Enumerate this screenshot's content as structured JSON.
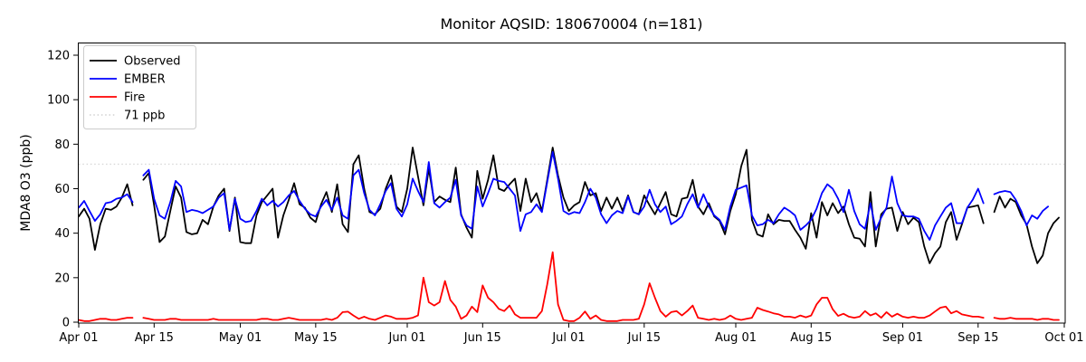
{
  "title": "Monitor AQSID: 180670004 (n=181)",
  "axes": {
    "ylabel": "MDA8 O3 (ppb)",
    "y_ticks": [
      0,
      20,
      40,
      60,
      80,
      100,
      120
    ],
    "x_tick_labels": [
      "Apr 01",
      "Apr 15",
      "May 01",
      "May 15",
      "Jun 01",
      "Jun 15",
      "Jul 01",
      "Jul 15",
      "Aug 01",
      "Aug 15",
      "Sep 01",
      "Sep 15",
      "Oct 01"
    ],
    "x_tick_days": [
      0,
      14,
      30,
      44,
      61,
      75,
      91,
      105,
      122,
      136,
      153,
      167,
      183
    ],
    "ylim": [
      0,
      125.7
    ],
    "total_days": 183,
    "grid": false
  },
  "threshold": {
    "value": 71,
    "label": "71 ppb",
    "color": "#d8d8d8"
  },
  "legend": {
    "position": "upper-left",
    "items": [
      {
        "label": "Observed",
        "color": "#000000",
        "style": "solid"
      },
      {
        "label": "EMBER",
        "color": "#0000ff",
        "style": "solid"
      },
      {
        "label": "Fire",
        "color": "#ff0000",
        "style": "solid"
      },
      {
        "label": "71 ppb",
        "color": "#d8d8d8",
        "style": "dotted"
      }
    ]
  },
  "chart_data": {
    "type": "line",
    "title": "Monitor AQSID: 180670004 (n=181)",
    "xlabel": "",
    "ylabel": "MDA8 O3 (ppb)",
    "x_unit": "daily, day index 0 = Apr 01 through day 182 = Sep 30; null = missing day",
    "x_range_labels": [
      "Apr 01",
      "Oct 01"
    ],
    "ylim": [
      0,
      125.7
    ],
    "threshold_line": 71,
    "series": [
      {
        "name": "Observed",
        "color": "#000000",
        "values": [
          47.5,
          51,
          46.5,
          32.5,
          44,
          51,
          50.5,
          52,
          56,
          62,
          52.5,
          null,
          64,
          67,
          52.5,
          36,
          38.5,
          50,
          61,
          56,
          40.5,
          39.5,
          40,
          46,
          44,
          52,
          57,
          60,
          41,
          56,
          36,
          35.5,
          35.5,
          48,
          54,
          57,
          60,
          38,
          48,
          55,
          62.5,
          53,
          51.5,
          47,
          45,
          53,
          58.5,
          49.5,
          62,
          44,
          40.5,
          71,
          75,
          60,
          49.5,
          48.5,
          51,
          60,
          66,
          52,
          49.5,
          60,
          78.5,
          65.5,
          52.5,
          69,
          54,
          56.5,
          55,
          54,
          69.5,
          48.5,
          42.5,
          38,
          68,
          55.5,
          64,
          75,
          60,
          59,
          62,
          64.5,
          50,
          64.5,
          54,
          58,
          50,
          64,
          78.5,
          66,
          56,
          50,
          52.5,
          54,
          63,
          57,
          58,
          50,
          56,
          51,
          56,
          50,
          57,
          49.5,
          48.5,
          57,
          52.5,
          48.5,
          53.5,
          58.5,
          48.5,
          47.5,
          55.5,
          56,
          64,
          52,
          48.5,
          53.5,
          47.5,
          45.5,
          39.5,
          50,
          57.5,
          70,
          77.5,
          46,
          39.5,
          38.5,
          48.5,
          44,
          46,
          45.5,
          45.5,
          41.5,
          38,
          33,
          49,
          38,
          54,
          48,
          53.5,
          49,
          52,
          44,
          38,
          37.5,
          34,
          58.5,
          34,
          48.5,
          51,
          51.5,
          41,
          49.5,
          44,
          47,
          45,
          34,
          26.5,
          31,
          34,
          45,
          49.5,
          37,
          44,
          51.5,
          52,
          52.5,
          44.5,
          null,
          49.5,
          56.5,
          51.5,
          55.5,
          54,
          48,
          44,
          34,
          26.5,
          30,
          40,
          44.5,
          47
        ]
      },
      {
        "name": "EMBER",
        "color": "#0000ff",
        "values": [
          51.5,
          54.5,
          50,
          45.5,
          48.5,
          53.5,
          54,
          55.5,
          56,
          57.5,
          54,
          null,
          66,
          68.5,
          55.5,
          48,
          46.5,
          54,
          63.5,
          61,
          49.5,
          50.5,
          50,
          49,
          50.5,
          52,
          56,
          58,
          41.5,
          55.5,
          46.5,
          45,
          45.5,
          50,
          55.5,
          52.5,
          54.5,
          52,
          54,
          57,
          59,
          54.5,
          51,
          48.5,
          47.5,
          52,
          55,
          50.5,
          56,
          48,
          46.5,
          66,
          68.5,
          58,
          50.5,
          48,
          53,
          59,
          62.5,
          51,
          47.5,
          53,
          64.5,
          59,
          54,
          72,
          53.5,
          51.5,
          54,
          56,
          64,
          48,
          43.5,
          42,
          61,
          52,
          58,
          64.5,
          63.5,
          63,
          60,
          57,
          41,
          48.5,
          49.5,
          53,
          49.5,
          63,
          76.5,
          64.5,
          50,
          48.5,
          49.5,
          49,
          54,
          60,
          56,
          48.5,
          44.5,
          48,
          50,
          49,
          56.5,
          49.5,
          48.5,
          52,
          59.5,
          53,
          49.5,
          52,
          44,
          45.5,
          47.5,
          53,
          57.5,
          51.5,
          57.5,
          52,
          48,
          46,
          41.5,
          52,
          59.5,
          60.5,
          61.5,
          48,
          43.5,
          44,
          46,
          44.5,
          48.5,
          51.5,
          50,
          48,
          41.5,
          43.5,
          46,
          51,
          58,
          62,
          60,
          55.5,
          49.5,
          59.5,
          50,
          44,
          42,
          53.5,
          41.5,
          47,
          51.5,
          65.5,
          53.5,
          48,
          47.5,
          47.5,
          46.5,
          41,
          37,
          43.5,
          47.5,
          51.5,
          53.5,
          44.5,
          44.5,
          51.5,
          55,
          60,
          53.5,
          null,
          57.5,
          58.5,
          59,
          58.5,
          55,
          50,
          43.5,
          48,
          46.5,
          50,
          52,
          null,
          null
        ]
      },
      {
        "name": "Fire",
        "color": "#ff0000",
        "values": [
          1,
          0.5,
          0.5,
          1,
          1.5,
          1.5,
          1,
          1,
          1.5,
          2,
          2,
          null,
          2,
          1.5,
          1,
          1,
          1,
          1.5,
          1.5,
          1,
          1,
          1,
          1,
          1,
          1,
          1.5,
          1,
          1,
          1,
          1,
          1,
          1,
          1,
          1,
          1.5,
          1.5,
          1,
          1,
          1.5,
          2,
          1.5,
          1,
          1,
          1,
          1,
          1,
          1.5,
          1,
          2,
          4.5,
          4.7,
          3,
          1.5,
          2.5,
          1.5,
          1,
          2,
          3,
          2.5,
          1.5,
          1.5,
          1.5,
          2,
          3,
          20,
          9,
          7.5,
          9,
          18.5,
          10,
          7,
          1.5,
          3,
          7,
          4.5,
          16.5,
          11,
          9,
          6,
          5,
          7.5,
          3.5,
          2,
          2,
          2,
          2,
          5,
          17,
          31.5,
          8,
          1,
          0.5,
          0.5,
          2,
          4.8,
          1.5,
          3,
          1,
          0.5,
          0.5,
          0.5,
          1,
          1,
          1,
          1.5,
          8,
          17.5,
          11,
          5,
          2.5,
          4.5,
          5,
          3,
          5,
          7.5,
          2,
          1.5,
          1,
          1.5,
          1,
          1.5,
          3,
          1.5,
          1,
          1.5,
          2,
          6.5,
          5.5,
          4.8,
          4,
          3.5,
          2.5,
          2.5,
          2,
          3,
          2.2,
          3,
          8,
          11,
          11,
          5.8,
          2.8,
          3.8,
          2.5,
          2,
          2.5,
          5,
          3,
          4,
          2,
          4.5,
          2.5,
          3.8,
          2.5,
          2,
          2.5,
          2,
          2,
          3,
          4.8,
          6.5,
          7,
          4,
          5,
          3.5,
          3,
          2.5,
          2.5,
          2,
          null,
          2,
          1.5,
          1.5,
          2,
          1.5,
          1.5,
          1.5,
          1.5,
          1,
          1.5,
          1.5,
          1,
          1
        ]
      }
    ]
  }
}
